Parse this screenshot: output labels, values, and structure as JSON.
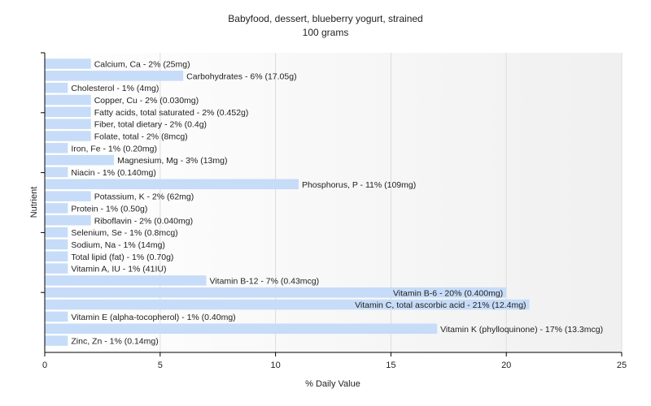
{
  "chart_data": {
    "type": "bar",
    "orientation": "horizontal",
    "title": "Babyfood, dessert, blueberry yogurt, strained",
    "subtitle": "100 grams",
    "xlabel": "% Daily Value",
    "ylabel": "Nutrient",
    "xlim": [
      0,
      25
    ],
    "xticks": [
      "0",
      "5",
      "10",
      "15",
      "20",
      "25"
    ],
    "grid": true,
    "bar_color": "#c6dcf8",
    "categories": [
      "Calcium, Ca",
      "Carbohydrates",
      "Cholesterol",
      "Copper, Cu",
      "Fatty acids, total saturated",
      "Fiber, total dietary",
      "Folate, total",
      "Iron, Fe",
      "Magnesium, Mg",
      "Niacin",
      "Phosphorus, P",
      "Potassium, K",
      "Protein",
      "Riboflavin",
      "Selenium, Se",
      "Sodium, Na",
      "Total lipid (fat)",
      "Vitamin A, IU",
      "Vitamin B-12",
      "Vitamin B-6",
      "Vitamin C, total ascorbic acid",
      "Vitamin E (alpha-tocopherol)",
      "Vitamin K (phylloquinone)",
      "Zinc, Zn"
    ],
    "values": [
      2,
      6,
      1,
      2,
      2,
      2,
      2,
      1,
      3,
      1,
      11,
      2,
      1,
      2,
      1,
      1,
      1,
      1,
      7,
      20,
      21,
      1,
      17,
      1
    ],
    "labels": [
      "Calcium, Ca - 2% (25mg)",
      "Carbohydrates - 6% (17.05g)",
      "Cholesterol - 1% (4mg)",
      "Copper, Cu - 2% (0.030mg)",
      "Fatty acids, total saturated - 2% (0.452g)",
      "Fiber, total dietary - 2% (0.4g)",
      "Folate, total - 2% (8mcg)",
      "Iron, Fe - 1% (0.20mg)",
      "Magnesium, Mg - 3% (13mg)",
      "Niacin - 1% (0.140mg)",
      "Phosphorus, P - 11% (109mg)",
      "Potassium, K - 2% (62mg)",
      "Protein - 1% (0.50g)",
      "Riboflavin - 2% (0.040mg)",
      "Selenium, Se - 1% (0.8mcg)",
      "Sodium, Na - 1% (14mg)",
      "Total lipid (fat) - 1% (0.70g)",
      "Vitamin A, IU - 1% (41IU)",
      "Vitamin B-12 - 7% (0.43mcg)",
      "Vitamin B-6 - 20% (0.400mg)",
      "Vitamin C, total ascorbic acid - 21% (12.4mg)",
      "Vitamin E (alpha-tocopherol) - 1% (0.40mg)",
      "Vitamin K (phylloquinone) - 17% (13.3mcg)",
      "Zinc, Zn - 1% (0.14mg)"
    ]
  }
}
